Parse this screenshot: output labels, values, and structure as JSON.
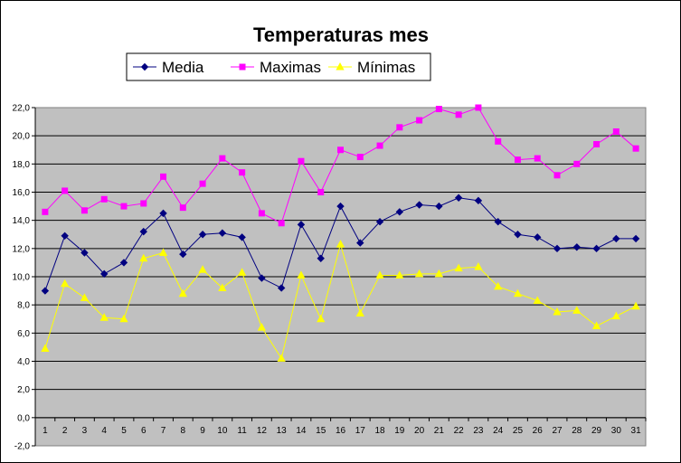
{
  "chart_data": {
    "type": "line",
    "title": "Temperaturas mes",
    "xlabel": "",
    "ylabel": "",
    "x": [
      "1",
      "2",
      "3",
      "4",
      "5",
      "6",
      "7",
      "8",
      "9",
      "10",
      "11",
      "12",
      "13",
      "14",
      "15",
      "16",
      "17",
      "18",
      "19",
      "20",
      "21",
      "22",
      "23",
      "24",
      "25",
      "26",
      "27",
      "28",
      "29",
      "30",
      "31"
    ],
    "ylim": [
      -2,
      22
    ],
    "yticks": [
      "-2,0",
      "0,0",
      "2,0",
      "4,0",
      "6,0",
      "8,0",
      "10,0",
      "12,0",
      "14,0",
      "16,0",
      "18,0",
      "20,0",
      "22,0"
    ],
    "ytick_values": [
      -2,
      0,
      2,
      4,
      6,
      8,
      10,
      12,
      14,
      16,
      18,
      20,
      22
    ],
    "grid": true,
    "plot_background": "#c0c0c0",
    "legend_position": "top",
    "series": [
      {
        "name": "Media",
        "color": "#000080",
        "marker": "diamond",
        "values": [
          9.0,
          12.9,
          11.7,
          10.2,
          11.0,
          13.2,
          14.5,
          11.6,
          13.0,
          13.1,
          12.8,
          9.9,
          9.2,
          13.7,
          11.3,
          15.0,
          12.4,
          13.9,
          14.6,
          15.1,
          15.0,
          15.6,
          15.4,
          13.9,
          13.0,
          12.8,
          12.0,
          12.1,
          12.0,
          12.7,
          12.7
        ]
      },
      {
        "name": "Maximas",
        "color": "#ff00ff",
        "marker": "square",
        "values": [
          14.6,
          16.1,
          14.7,
          15.5,
          15.0,
          15.2,
          17.1,
          14.9,
          16.6,
          18.4,
          17.4,
          14.5,
          13.8,
          18.2,
          16.0,
          19.0,
          18.5,
          19.3,
          20.6,
          21.1,
          21.9,
          21.5,
          22.0,
          19.6,
          18.3,
          18.4,
          17.2,
          18.0,
          19.4,
          20.3,
          19.1
        ]
      },
      {
        "name": "Mínimas",
        "color": "#ffff00",
        "marker": "triangle",
        "values": [
          4.9,
          9.5,
          8.5,
          7.1,
          7.0,
          11.3,
          11.7,
          8.8,
          10.5,
          9.2,
          10.3,
          6.4,
          4.2,
          10.1,
          7.0,
          12.3,
          7.4,
          10.1,
          10.1,
          10.2,
          10.2,
          10.6,
          10.7,
          9.3,
          8.8,
          8.3,
          7.5,
          7.6,
          6.5,
          7.2,
          7.9
        ]
      }
    ]
  }
}
